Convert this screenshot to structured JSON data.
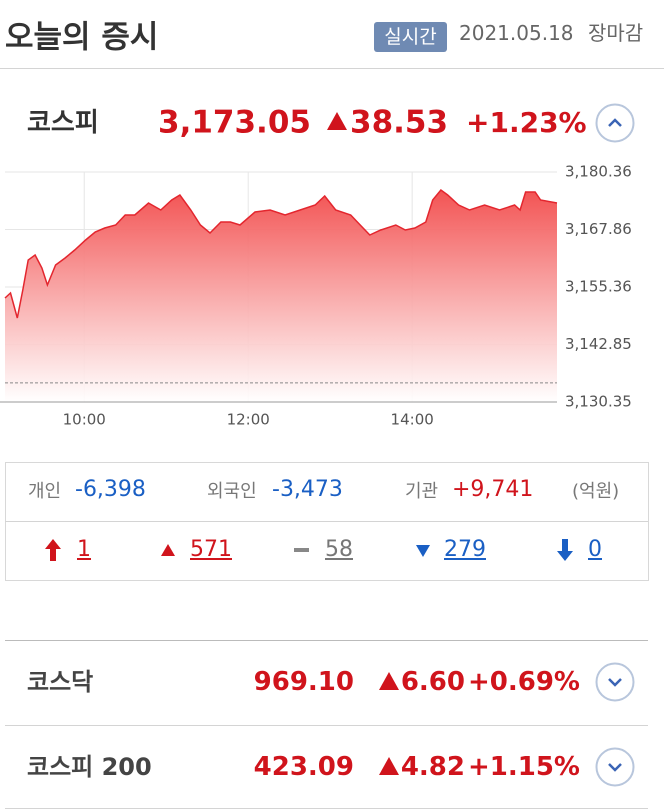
{
  "header": {
    "title": "오늘의 증시",
    "badge": "실시간",
    "date": "2021.05.18",
    "status": "장마감"
  },
  "kospi": {
    "name": "코스피",
    "value": "3,173.05",
    "change": "38.53",
    "change_pct": "+1.23%"
  },
  "chart_data": {
    "type": "area",
    "color": "#e3262e",
    "grid": true,
    "reference_line": 3134.52,
    "x": [
      542,
      546,
      551,
      555,
      559,
      564,
      569,
      573,
      579,
      586,
      593,
      601,
      608,
      615,
      623,
      630,
      637,
      647,
      656,
      664,
      670,
      678,
      685,
      692,
      700,
      707,
      714,
      725,
      736,
      747,
      758,
      769,
      776,
      784,
      795,
      802,
      809,
      817,
      828,
      835,
      842,
      850,
      855,
      861,
      866,
      874,
      882,
      893,
      904,
      915,
      919,
      923,
      930,
      934,
      946
    ],
    "values": [
      3152.96,
      3154.05,
      3148.61,
      3154.7,
      3161.23,
      3162.31,
      3159.49,
      3155.79,
      3160.14,
      3161.66,
      3163.4,
      3165.57,
      3167.31,
      3168.18,
      3168.84,
      3171.01,
      3171.01,
      3173.62,
      3172.1,
      3174.27,
      3175.36,
      3172.1,
      3168.84,
      3167.1,
      3169.49,
      3169.49,
      3168.84,
      3171.66,
      3172.1,
      3171.01,
      3172.1,
      3173.18,
      3175.14,
      3172.1,
      3171.01,
      3168.84,
      3166.66,
      3167.75,
      3168.84,
      3167.75,
      3168.18,
      3169.49,
      3174.27,
      3176.45,
      3175.36,
      3173.18,
      3172.1,
      3173.18,
      3172.1,
      3173.18,
      3172.1,
      3176.01,
      3176.01,
      3174.27,
      3173.62
    ],
    "xlim": [
      542,
      946
    ],
    "ylim": [
      3130.35,
      3180.36
    ],
    "xticks": [
      {
        "value": 600,
        "label": "10:00"
      },
      {
        "value": 720,
        "label": "12:00"
      },
      {
        "value": 840,
        "label": "14:00"
      }
    ],
    "yticks": [
      {
        "value": 3130.35,
        "label": "3,130.35"
      },
      {
        "value": 3142.85,
        "label": "3,142.85"
      },
      {
        "value": 3155.36,
        "label": "3,155.36"
      },
      {
        "value": 3167.86,
        "label": "3,167.86"
      },
      {
        "value": 3180.36,
        "label": "3,180.36"
      }
    ]
  },
  "investors": {
    "rows": [
      {
        "label": "개인",
        "value": "-6,398"
      },
      {
        "label": "외국인",
        "value": "-3,473"
      },
      {
        "label": "기관",
        "value": "+9,741"
      }
    ],
    "unit": "(억원)"
  },
  "breadth": [
    "1",
    "571",
    "58",
    "279",
    "0"
  ],
  "indices": [
    {
      "name": "코스닥",
      "value": "969.10",
      "change": "6.60",
      "change_pct": "+0.69%"
    },
    {
      "name": "코스피 200",
      "value": "423.09",
      "change": "4.82",
      "change_pct": "+1.15%"
    }
  ]
}
